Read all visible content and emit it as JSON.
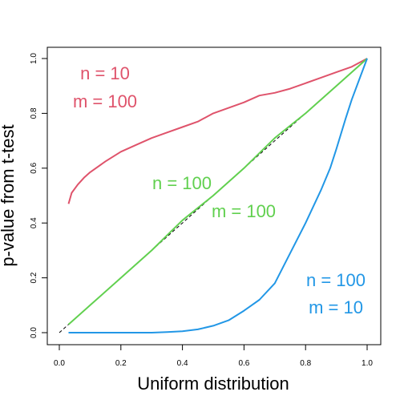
{
  "chart_data": {
    "type": "line",
    "xlabel": "Uniform distribution",
    "ylabel": "p-value from t-test",
    "xlim": [
      0,
      1
    ],
    "ylim": [
      0,
      1
    ],
    "xticks": [
      "0.0",
      "0.2",
      "0.4",
      "0.6",
      "0.8",
      "1.0"
    ],
    "yticks": [
      "0.0",
      "0.2",
      "0.4",
      "0.6",
      "0.8",
      "1.0"
    ],
    "grid": false,
    "reference_line": {
      "x": [
        0,
        1
      ],
      "y": [
        0,
        1
      ],
      "style": "dashed",
      "color": "#000000"
    },
    "series": [
      {
        "color": "#df536b",
        "x": [
          0.03,
          0.04,
          0.06,
          0.08,
          0.1,
          0.15,
          0.2,
          0.25,
          0.3,
          0.35,
          0.4,
          0.45,
          0.5,
          0.55,
          0.6,
          0.65,
          0.7,
          0.75,
          0.8,
          0.85,
          0.9,
          0.95,
          1.0
        ],
        "y": [
          0.47,
          0.51,
          0.54,
          0.565,
          0.585,
          0.625,
          0.66,
          0.685,
          0.71,
          0.73,
          0.75,
          0.77,
          0.8,
          0.82,
          0.84,
          0.865,
          0.875,
          0.89,
          0.91,
          0.93,
          0.95,
          0.97,
          1.0
        ]
      },
      {
        "color": "#61d04f",
        "x": [
          0.03,
          0.1,
          0.2,
          0.3,
          0.4,
          0.5,
          0.6,
          0.7,
          0.8,
          0.9,
          1.0
        ],
        "y": [
          0.03,
          0.1,
          0.2,
          0.3,
          0.41,
          0.5,
          0.6,
          0.71,
          0.8,
          0.9,
          1.0
        ]
      },
      {
        "color": "#2297e6",
        "x": [
          0.03,
          0.1,
          0.2,
          0.3,
          0.35,
          0.4,
          0.45,
          0.5,
          0.55,
          0.6,
          0.65,
          0.7,
          0.75,
          0.8,
          0.85,
          0.88,
          0.9,
          0.93,
          0.95,
          0.98,
          1.0
        ],
        "y": [
          0.0,
          0.0,
          0.0,
          0.0,
          0.002,
          0.005,
          0.012,
          0.025,
          0.045,
          0.08,
          0.12,
          0.18,
          0.29,
          0.4,
          0.52,
          0.6,
          0.67,
          0.78,
          0.85,
          0.94,
          1.0
        ]
      }
    ],
    "annotations": [
      {
        "lines": [
          "n = 10",
          "m = 100"
        ],
        "color": "#df536b"
      },
      {
        "lines": [
          "n = 100",
          "m = 100"
        ],
        "color": "#61d04f"
      },
      {
        "lines": [
          "n = 100",
          "m = 10"
        ],
        "color": "#2297e6"
      }
    ]
  }
}
